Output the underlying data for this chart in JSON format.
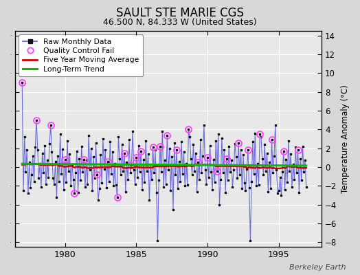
{
  "title": "SAULT STE MARIE CGS",
  "subtitle": "46.500 N, 84.333 W (United States)",
  "ylabel": "Temperature Anomaly (°C)",
  "credit": "Berkeley Earth",
  "ylim": [
    -8.5,
    14.5
  ],
  "yticks": [
    -8,
    -6,
    -4,
    -2,
    0,
    2,
    4,
    6,
    8,
    10,
    12,
    14
  ],
  "xlim": [
    1976.5,
    1998.0
  ],
  "xticks": [
    1980,
    1985,
    1990,
    1995
  ],
  "bg_color": "#d8d8d8",
  "plot_bg": "#e8e8e8",
  "raw_color": "#5555dd",
  "raw_marker_color": "#111111",
  "qc_color": "#ff44ff",
  "moving_avg_color": "#cc0000",
  "trend_color": "#00bb00",
  "raw_data": [
    9.0,
    -2.5,
    3.2,
    -0.5,
    1.8,
    -2.8,
    0.5,
    -2.2,
    -0.8,
    1.2,
    -1.5,
    2.1,
    5.0,
    1.8,
    -1.2,
    0.4,
    -2.1,
    1.5,
    -0.6,
    2.3,
    -1.8,
    0.7,
    -1.1,
    2.5,
    4.5,
    1.6,
    -1.2,
    -1.8,
    0.6,
    -3.2,
    1.2,
    -1.5,
    3.5,
    -0.7,
    1.9,
    -2.4,
    0.8,
    -1.6,
    2.8,
    -0.4,
    1.4,
    -2.0,
    0.3,
    -1.3,
    -2.8,
    -0.6,
    1.7,
    -2.7,
    0.9,
    -1.4,
    2.2,
    -0.5,
    0.8,
    -2.1,
    0.7,
    -1.8,
    3.4,
    -0.3,
    2.0,
    -2.5,
    1.1,
    -1.2,
    2.6,
    -0.8,
    -3.5,
    -2.3,
    1.3,
    -1.7,
    3.0,
    -0.2,
    1.8,
    -2.2,
    0.6,
    -1.5,
    2.7,
    -0.7,
    1.6,
    -2.0,
    0.4,
    -1.9,
    -3.2,
    3.2,
    0.9,
    -0.8,
    2.4,
    -0.4,
    1.5,
    -2.6,
    0.5,
    -1.3,
    2.9,
    -0.6,
    0.2,
    3.8,
    -0.3,
    -1.8,
    1.0,
    -1.1,
    2.3,
    -0.5,
    1.7,
    -2.4,
    0.8,
    -1.6,
    2.8,
    -0.4,
    1.4,
    -3.5,
    0.3,
    -1.3,
    2.1,
    -0.6,
    1.8,
    -2.7,
    -7.8,
    -1.4,
    2.2,
    -0.5,
    3.8,
    -2.1,
    0.7,
    -1.8,
    3.4,
    -0.3,
    2.0,
    -2.5,
    1.1,
    -4.5,
    2.6,
    -0.8,
    1.8,
    -2.3,
    0.6,
    -1.5,
    2.7,
    -0.7,
    1.6,
    -2.0,
    0.4,
    -1.9,
    4.0,
    3.2,
    0.9,
    -0.8,
    2.4,
    -0.4,
    1.5,
    -2.6,
    0.5,
    -1.3,
    2.9,
    -0.6,
    1.2,
    4.5,
    -0.3,
    -1.8,
    1.0,
    -1.1,
    2.3,
    -0.5,
    -2.4,
    0.8,
    -1.6,
    2.8,
    -0.4,
    3.5,
    -4.0,
    -1.3,
    3.1,
    -0.6,
    1.8,
    -2.7,
    0.9,
    -1.4,
    2.2,
    -0.5,
    0.7,
    -2.1,
    -0.3,
    2.5,
    1.1,
    -1.2,
    2.6,
    -0.8,
    1.8,
    -2.3,
    1.3,
    -1.7,
    -2.5,
    -0.2,
    1.8,
    -2.2,
    -7.8,
    -1.5,
    2.7,
    -0.7,
    3.6,
    -2.0,
    0.4,
    -1.9,
    3.5,
    3.2,
    0.9,
    -0.8,
    2.4,
    -0.4,
    1.5,
    -2.6,
    0.5,
    -2.3,
    2.9,
    -0.6,
    1.2,
    4.5,
    -0.3,
    -2.8,
    -2.5,
    -1.1,
    -3.0,
    -0.5,
    1.7,
    -2.4,
    0.8,
    -1.6,
    2.8,
    -0.4,
    1.4,
    -2.1,
    0.3,
    -1.3,
    2.1,
    -0.6,
    1.8,
    -2.7,
    0.9,
    -1.4,
    2.2,
    -0.5,
    0.7,
    -2.1
  ],
  "qc_fail_indices": [
    0,
    12,
    24,
    36,
    44,
    52,
    63,
    72,
    80,
    86,
    92,
    96,
    100,
    110,
    116,
    122,
    130,
    140,
    148,
    156,
    164,
    172,
    182,
    190,
    200,
    210,
    220,
    232
  ],
  "n_months": 240,
  "t_start": 1977.0
}
